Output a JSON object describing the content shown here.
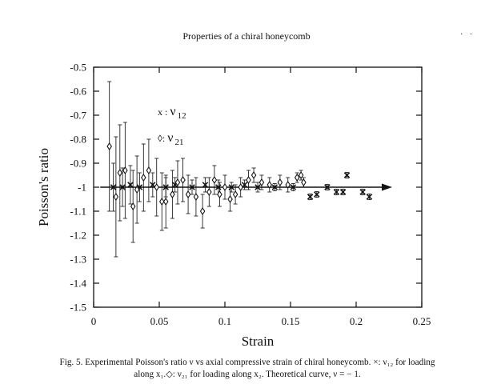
{
  "page": {
    "running_head": "Properties of a chiral honeycomb",
    "corner_mark": "· ·",
    "caption_line1": "Fig. 5. Experimental Poisson's ratio ν vs axial compressive strain of chiral honeycomb. ×: ν₁₂ for loading",
    "caption_line2": "along x₁.◇: ν₂₁ for loading along x₂. Theoretical curve, ν = − 1."
  },
  "chart_data": {
    "type": "scatter",
    "title": "",
    "xlabel": "Strain",
    "ylabel": "Poisson's ratio",
    "xlim": [
      0,
      0.25
    ],
    "ylim": [
      -1.5,
      -0.5
    ],
    "y_inverted": true,
    "x_ticks": [
      0,
      0.05,
      0.1,
      0.15,
      0.2,
      0.25
    ],
    "x_tick_labels": [
      "0",
      "0.05",
      "0.1",
      "0.15",
      "0.2",
      "0.25"
    ],
    "y_ticks": [
      -0.5,
      -0.6,
      -0.7,
      -0.8,
      -0.9,
      -1,
      -1.1,
      -1.2,
      -1.3,
      -1.4,
      -1.5
    ],
    "y_tick_labels": [
      "-0.5",
      "-0.6",
      "-0.7",
      "-0.8",
      "-0.9",
      "-1",
      "-1.1",
      "-1.2",
      "-1.3",
      "-1.4",
      "-1.5"
    ],
    "grid": false,
    "legend_position": "upper-left inside plot",
    "legend": [
      {
        "symbol": "x",
        "prefix": "x : ",
        "label": "ν",
        "sub": "12"
      },
      {
        "symbol": "diamond",
        "prefix": "◊: ",
        "label": "ν",
        "sub": "21"
      }
    ],
    "series": [
      {
        "marker": "x",
        "points": [
          {
            "x": 0.015,
            "y": -1.0,
            "err": 0.1
          },
          {
            "x": 0.022,
            "y": -1.0,
            "err": 0.08
          },
          {
            "x": 0.028,
            "y": -0.99,
            "err": 0.08
          },
          {
            "x": 0.035,
            "y": -1.0,
            "err": 0.06
          },
          {
            "x": 0.045,
            "y": -0.99,
            "err": 0.05
          },
          {
            "x": 0.055,
            "y": -1.0,
            "err": 0.04
          },
          {
            "x": 0.062,
            "y": -0.99,
            "err": 0.03
          },
          {
            "x": 0.075,
            "y": -1.0,
            "err": 0.03
          },
          {
            "x": 0.085,
            "y": -0.99,
            "err": 0.03
          },
          {
            "x": 0.095,
            "y": -1.0,
            "err": 0.03
          },
          {
            "x": 0.105,
            "y": -1.0,
            "err": 0.02
          },
          {
            "x": 0.115,
            "y": -0.99,
            "err": 0.02
          },
          {
            "x": 0.125,
            "y": -1.0,
            "err": 0.02
          },
          {
            "x": 0.138,
            "y": -1.0,
            "err": 0.015
          },
          {
            "x": 0.152,
            "y": -1.0,
            "err": 0.015
          },
          {
            "x": 0.165,
            "y": -1.04,
            "err": 0.012
          },
          {
            "x": 0.17,
            "y": -1.03,
            "err": 0.012
          },
          {
            "x": 0.178,
            "y": -1.0,
            "err": 0.012
          },
          {
            "x": 0.185,
            "y": -1.02,
            "err": 0.012
          },
          {
            "x": 0.19,
            "y": -1.02,
            "err": 0.012
          },
          {
            "x": 0.193,
            "y": -0.95,
            "err": 0.012
          },
          {
            "x": 0.205,
            "y": -1.02,
            "err": 0.012
          },
          {
            "x": 0.21,
            "y": -1.04,
            "err": 0.012
          }
        ]
      },
      {
        "marker": "diamond",
        "points": [
          {
            "x": 0.012,
            "y": -0.83,
            "err": 0.27
          },
          {
            "x": 0.017,
            "y": -1.04,
            "err": 0.25
          },
          {
            "x": 0.02,
            "y": -0.94,
            "err": 0.2
          },
          {
            "x": 0.024,
            "y": -0.93,
            "err": 0.2
          },
          {
            "x": 0.03,
            "y": -1.08,
            "err": 0.15
          },
          {
            "x": 0.033,
            "y": -1.01,
            "err": 0.14
          },
          {
            "x": 0.038,
            "y": -0.96,
            "err": 0.14
          },
          {
            "x": 0.042,
            "y": -0.93,
            "err": 0.13
          },
          {
            "x": 0.048,
            "y": -1.0,
            "err": 0.12
          },
          {
            "x": 0.052,
            "y": -1.06,
            "err": 0.12
          },
          {
            "x": 0.055,
            "y": -1.06,
            "err": 0.11
          },
          {
            "x": 0.06,
            "y": -1.03,
            "err": 0.1
          },
          {
            "x": 0.064,
            "y": -0.98,
            "err": 0.09
          },
          {
            "x": 0.068,
            "y": -0.97,
            "err": 0.09
          },
          {
            "x": 0.072,
            "y": -1.03,
            "err": 0.08
          },
          {
            "x": 0.078,
            "y": -1.04,
            "err": 0.08
          },
          {
            "x": 0.083,
            "y": -1.1,
            "err": 0.07
          },
          {
            "x": 0.088,
            "y": -1.02,
            "err": 0.06
          },
          {
            "x": 0.092,
            "y": -0.97,
            "err": 0.06
          },
          {
            "x": 0.096,
            "y": -1.03,
            "err": 0.05
          },
          {
            "x": 0.1,
            "y": -1.0,
            "err": 0.05
          },
          {
            "x": 0.104,
            "y": -1.05,
            "err": 0.05
          },
          {
            "x": 0.108,
            "y": -1.03,
            "err": 0.04
          },
          {
            "x": 0.112,
            "y": -1.0,
            "err": 0.04
          },
          {
            "x": 0.118,
            "y": -0.97,
            "err": 0.04
          },
          {
            "x": 0.122,
            "y": -0.95,
            "err": 0.03
          },
          {
            "x": 0.128,
            "y": -0.98,
            "err": 0.03
          },
          {
            "x": 0.134,
            "y": -0.99,
            "err": 0.03
          },
          {
            "x": 0.142,
            "y": -0.98,
            "err": 0.03
          },
          {
            "x": 0.148,
            "y": -0.99,
            "err": 0.03
          },
          {
            "x": 0.155,
            "y": -0.96,
            "err": 0.02
          },
          {
            "x": 0.158,
            "y": -0.95,
            "err": 0.02
          },
          {
            "x": 0.16,
            "y": -0.98,
            "err": 0.02
          }
        ]
      }
    ],
    "theory": {
      "y": -1,
      "x_range": [
        0.005,
        0.225
      ],
      "arrow_at_end": true
    }
  }
}
